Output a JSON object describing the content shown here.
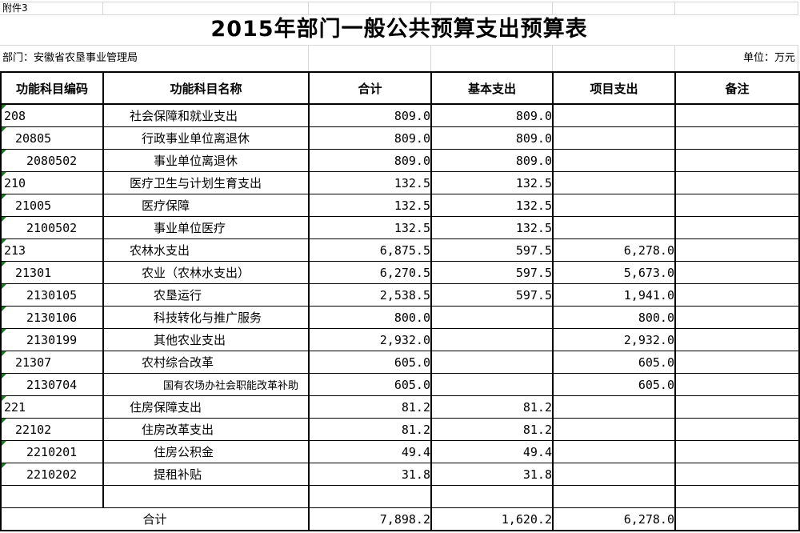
{
  "page": {
    "attachment_label": "附件3",
    "title": "2015年部门一般公共预算支出预算表",
    "department_label": "部门：安徽省农垦事业管理局",
    "unit_label": "单位：万元"
  },
  "colors": {
    "border": "#000000",
    "gridline": "#d6d6d6",
    "error_triangle_green": "#217821",
    "background": "#ffffff",
    "text": "#000000"
  },
  "table": {
    "columns": [
      "功能科目编码",
      "功能科目名称",
      "合计",
      "基本支出",
      "项目支出",
      "备注"
    ],
    "rows": [
      {
        "code": "208",
        "name": "社会保障和就业支出",
        "level": 1,
        "total": "809.0",
        "basic": "809.0",
        "project": "",
        "note": "",
        "flag": true
      },
      {
        "code": "20805",
        "name": "行政事业单位离退休",
        "level": 2,
        "total": "809.0",
        "basic": "809.0",
        "project": "",
        "note": "",
        "flag": true
      },
      {
        "code": "2080502",
        "name": "事业单位离退休",
        "level": 3,
        "total": "809.0",
        "basic": "809.0",
        "project": "",
        "note": "",
        "flag": true
      },
      {
        "code": "210",
        "name": "医疗卫生与计划生育支出",
        "level": 1,
        "total": "132.5",
        "basic": "132.5",
        "project": "",
        "note": "",
        "flag": true
      },
      {
        "code": "21005",
        "name": "医疗保障",
        "level": 2,
        "total": "132.5",
        "basic": "132.5",
        "project": "",
        "note": "",
        "flag": true
      },
      {
        "code": "2100502",
        "name": "事业单位医疗",
        "level": 3,
        "total": "132.5",
        "basic": "132.5",
        "project": "",
        "note": "",
        "flag": true
      },
      {
        "code": "213",
        "name": "农林水支出",
        "level": 1,
        "total": "6,875.5",
        "basic": "597.5",
        "project": "6,278.0",
        "note": "",
        "flag": true
      },
      {
        "code": "21301",
        "name": "农业（农林水支出）",
        "level": 2,
        "total": "6,270.5",
        "basic": "597.5",
        "project": "5,673.0",
        "note": "",
        "flag": true
      },
      {
        "code": "2130105",
        "name": "农垦运行",
        "level": 3,
        "total": "2,538.5",
        "basic": "597.5",
        "project": "1,941.0",
        "note": "",
        "flag": true
      },
      {
        "code": "2130106",
        "name": "科技转化与推广服务",
        "level": 3,
        "total": "800.0",
        "basic": "",
        "project": "800.0",
        "note": "",
        "flag": true
      },
      {
        "code": "2130199",
        "name": "其他农业支出",
        "level": 3,
        "total": "2,932.0",
        "basic": "",
        "project": "2,932.0",
        "note": "",
        "flag": true
      },
      {
        "code": "21307",
        "name": "农村综合改革",
        "level": 2,
        "total": "605.0",
        "basic": "",
        "project": "605.0",
        "note": "",
        "flag": true
      },
      {
        "code": "2130704",
        "name": "国有农场办社会职能改革补助",
        "level": 3,
        "total": "605.0",
        "basic": "",
        "project": "605.0",
        "note": "",
        "flag": true,
        "shrink": true
      },
      {
        "code": "221",
        "name": "住房保障支出",
        "level": 1,
        "total": "81.2",
        "basic": "81.2",
        "project": "",
        "note": "",
        "flag": true
      },
      {
        "code": "22102",
        "name": "住房改革支出",
        "level": 2,
        "total": "81.2",
        "basic": "81.2",
        "project": "",
        "note": "",
        "flag": true
      },
      {
        "code": "2210201",
        "name": "住房公积金",
        "level": 3,
        "total": "49.4",
        "basic": "49.4",
        "project": "",
        "note": "",
        "flag": true
      },
      {
        "code": "2210202",
        "name": "提租补贴",
        "level": 3,
        "total": "31.8",
        "basic": "31.8",
        "project": "",
        "note": "",
        "flag": true
      },
      {
        "code": "",
        "name": "",
        "level": 0,
        "total": "",
        "basic": "",
        "project": "",
        "note": "",
        "flag": false
      }
    ],
    "total_row": {
      "label": "合计",
      "total": "7,898.2",
      "basic": "1,620.2",
      "project": "6,278.0",
      "note": ""
    }
  }
}
